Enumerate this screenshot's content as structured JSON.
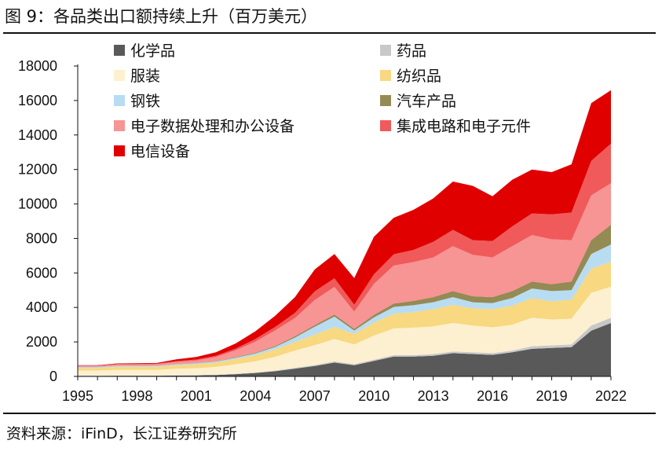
{
  "title": "图 9：各品类出口额持续上升（百万美元）",
  "source": "资料来源：iFinD，长江证券研究所",
  "chart_data": {
    "type": "area",
    "stacked": true,
    "x": [
      1995,
      1996,
      1997,
      1998,
      1999,
      2000,
      2001,
      2002,
      2003,
      2004,
      2005,
      2006,
      2007,
      2008,
      2009,
      2010,
      2011,
      2012,
      2013,
      2014,
      2015,
      2016,
      2017,
      2018,
      2019,
      2020,
      2021,
      2022
    ],
    "x_ticks": [
      1995,
      1998,
      2001,
      2004,
      2007,
      2010,
      2013,
      2016,
      2019,
      2022
    ],
    "y_ticks": [
      0,
      2000,
      4000,
      6000,
      8000,
      10000,
      12000,
      14000,
      16000,
      18000
    ],
    "ylim": [
      0,
      18000
    ],
    "legend_position": "top",
    "series": [
      {
        "name": "化学品",
        "color": "#595959",
        "values": [
          30,
          30,
          40,
          40,
          40,
          50,
          60,
          80,
          130,
          200,
          300,
          450,
          600,
          800,
          650,
          900,
          1150,
          1150,
          1200,
          1350,
          1300,
          1250,
          1400,
          1600,
          1650,
          1700,
          2650,
          3100
        ]
      },
      {
        "name": "药品",
        "color": "#c8c8c8",
        "values": [
          10,
          10,
          10,
          10,
          10,
          15,
          15,
          20,
          25,
          30,
          40,
          50,
          60,
          70,
          60,
          70,
          80,
          80,
          100,
          100,
          100,
          100,
          100,
          150,
          150,
          150,
          300,
          300
        ]
      },
      {
        "name": "服装",
        "color": "#fdf0d0",
        "values": [
          300,
          300,
          330,
          330,
          330,
          380,
          400,
          450,
          550,
          650,
          800,
          1000,
          1150,
          1300,
          1150,
          1400,
          1550,
          1600,
          1600,
          1650,
          1550,
          1500,
          1500,
          1650,
          1500,
          1500,
          1900,
          1800
        ]
      },
      {
        "name": "纺织品",
        "color": "#f8d880",
        "values": [
          150,
          150,
          170,
          170,
          180,
          200,
          220,
          250,
          300,
          350,
          420,
          500,
          620,
          700,
          600,
          750,
          850,
          900,
          1000,
          1050,
          1000,
          1050,
          1100,
          1150,
          1050,
          1100,
          1400,
          1450
        ]
      },
      {
        "name": "钢铁",
        "color": "#b8dcf2",
        "values": [
          50,
          50,
          50,
          50,
          50,
          60,
          60,
          60,
          80,
          100,
          150,
          250,
          450,
          600,
          200,
          300,
          400,
          400,
          400,
          450,
          350,
          350,
          450,
          550,
          600,
          550,
          850,
          1000
        ]
      },
      {
        "name": "汽车产品",
        "color": "#948a54",
        "values": [
          10,
          10,
          10,
          10,
          10,
          15,
          15,
          20,
          30,
          40,
          60,
          80,
          100,
          120,
          100,
          150,
          200,
          250,
          300,
          350,
          350,
          350,
          400,
          400,
          400,
          500,
          800,
          1150
        ]
      },
      {
        "name": "电子数据处理和办公设备",
        "color": "#f79494",
        "values": [
          60,
          60,
          80,
          80,
          90,
          120,
          150,
          250,
          400,
          650,
          900,
          1050,
          1450,
          1600,
          1000,
          1800,
          2200,
          2250,
          2300,
          2600,
          2400,
          2300,
          2600,
          2700,
          2600,
          2400,
          2600,
          2400
        ]
      },
      {
        "name": "集成电路和电子元件",
        "color": "#f05a5a",
        "values": [
          20,
          20,
          30,
          30,
          30,
          50,
          60,
          70,
          100,
          150,
          200,
          300,
          500,
          500,
          400,
          550,
          650,
          700,
          900,
          950,
          850,
          950,
          1150,
          1250,
          1450,
          1600,
          2000,
          2300
        ]
      },
      {
        "name": "电信设备",
        "color": "#e00000",
        "values": [
          20,
          20,
          30,
          40,
          40,
          100,
          150,
          200,
          300,
          450,
          650,
          920,
          1270,
          1410,
          1540,
          2180,
          2120,
          2330,
          2520,
          2800,
          3150,
          2600,
          2700,
          2550,
          2450,
          2800,
          3350,
          3100
        ]
      }
    ]
  }
}
